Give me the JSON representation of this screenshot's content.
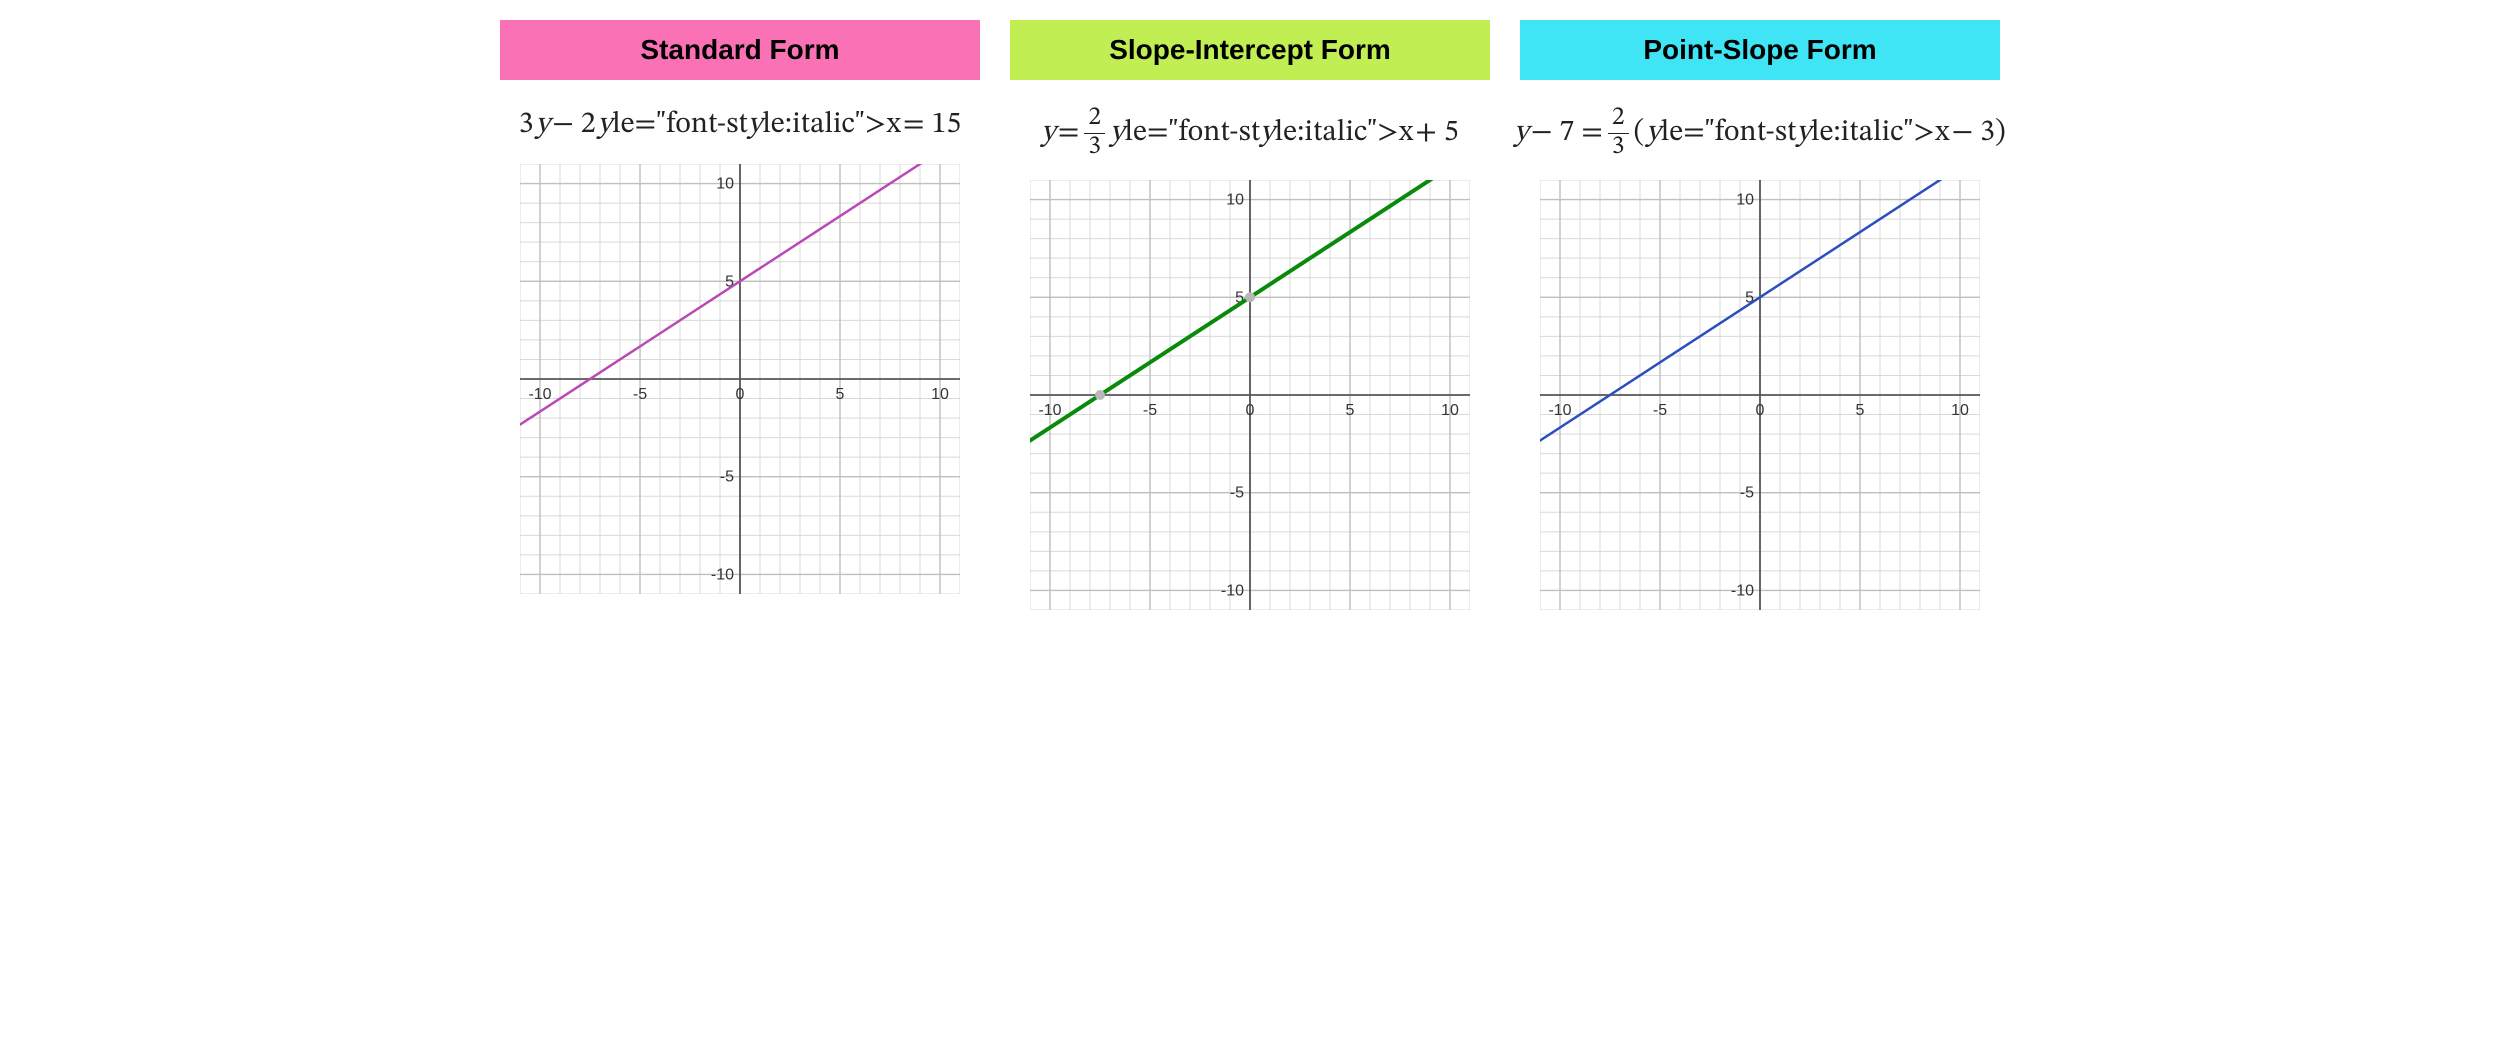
{
  "panels": [
    {
      "title": "Standard Form",
      "header_bg": "#fb71b6",
      "equation_parts": [
        "3",
        "y",
        " − 2",
        "x",
        " = 15"
      ],
      "graph": {
        "type": "line",
        "xlim": [
          -11,
          11
        ],
        "ylim": [
          -11,
          11
        ],
        "grid_step": 1,
        "major_step": 5,
        "grid_color": "#d9d9d9",
        "major_grid_color": "#bfbfbf",
        "axis_color": "#555555",
        "background_color": "#ffffff",
        "tick_label_fontsize": 16,
        "tick_label_color": "#333333",
        "x_tick_labels": [
          {
            "v": -10,
            "t": "-10"
          },
          {
            "v": -5,
            "t": "-5"
          },
          {
            "v": 0,
            "t": "0"
          },
          {
            "v": 5,
            "t": "5"
          },
          {
            "v": 10,
            "t": "10"
          }
        ],
        "y_tick_labels": [
          {
            "v": 10,
            "t": "10"
          },
          {
            "v": 5,
            "t": "5"
          },
          {
            "v": -5,
            "t": "-5"
          },
          {
            "v": -10,
            "t": "-10"
          }
        ],
        "line_color": "#b94ab3",
        "line_width": 2.5,
        "slope": 0.6667,
        "intercept": 5,
        "points": []
      }
    },
    {
      "title": "Slope-Intercept Form",
      "header_bg": "#c0ee53",
      "equation_parts": [
        "y",
        " = ",
        {
          "frac": [
            "2",
            "3"
          ]
        },
        "x",
        " + 5"
      ],
      "graph": {
        "type": "line",
        "xlim": [
          -11,
          11
        ],
        "ylim": [
          -11,
          11
        ],
        "grid_step": 1,
        "major_step": 5,
        "grid_color": "#d9d9d9",
        "major_grid_color": "#bfbfbf",
        "axis_color": "#555555",
        "background_color": "#ffffff",
        "tick_label_fontsize": 16,
        "tick_label_color": "#333333",
        "x_tick_labels": [
          {
            "v": -10,
            "t": "-10"
          },
          {
            "v": -5,
            "t": "-5"
          },
          {
            "v": 0,
            "t": "0"
          },
          {
            "v": 5,
            "t": "5"
          },
          {
            "v": 10,
            "t": "10"
          }
        ],
        "y_tick_labels": [
          {
            "v": 10,
            "t": "10"
          },
          {
            "v": 5,
            "t": "5"
          },
          {
            "v": -5,
            "t": "-5"
          },
          {
            "v": -10,
            "t": "-10"
          }
        ],
        "line_color": "#0a8a0a",
        "line_width": 4,
        "slope": 0.6667,
        "intercept": 5,
        "points": [
          {
            "x": 0,
            "y": 5,
            "color": "#b8b8b8",
            "r": 5
          },
          {
            "x": -7.5,
            "y": 0,
            "color": "#b8b8b8",
            "r": 5
          }
        ]
      }
    },
    {
      "title": "Point-Slope Form",
      "header_bg": "#3fe5f4",
      "equation_parts": [
        "y",
        " − 7 = ",
        {
          "frac": [
            "2",
            "3"
          ]
        },
        " (",
        "x",
        " − 3)"
      ],
      "graph": {
        "type": "line",
        "xlim": [
          -11,
          11
        ],
        "ylim": [
          -11,
          11
        ],
        "grid_step": 1,
        "major_step": 5,
        "grid_color": "#d9d9d9",
        "major_grid_color": "#bfbfbf",
        "axis_color": "#555555",
        "background_color": "#ffffff",
        "tick_label_fontsize": 16,
        "tick_label_color": "#333333",
        "x_tick_labels": [
          {
            "v": -10,
            "t": "-10"
          },
          {
            "v": -5,
            "t": "-5"
          },
          {
            "v": 0,
            "t": "0"
          },
          {
            "v": 5,
            "t": "5"
          },
          {
            "v": 10,
            "t": "10"
          }
        ],
        "y_tick_labels": [
          {
            "v": 10,
            "t": "10"
          },
          {
            "v": 5,
            "t": "5"
          },
          {
            "v": -5,
            "t": "-5"
          },
          {
            "v": -10,
            "t": "-10"
          }
        ],
        "line_color": "#2a4fbf",
        "line_width": 2.5,
        "slope": 0.6667,
        "intercept": 5,
        "points": []
      }
    }
  ]
}
